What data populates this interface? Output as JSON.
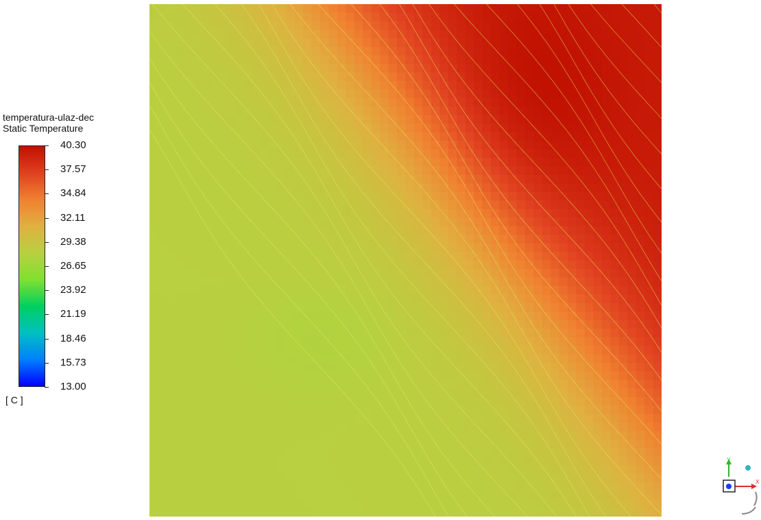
{
  "chart_data": {
    "type": "heatmap",
    "title": "temperatura-ulaz-dec",
    "subtitle": "Static Temperature",
    "unit": "[ C ]",
    "range": [
      13.0,
      40.3
    ],
    "tick_labels": [
      "40.30",
      "37.57",
      "34.84",
      "32.11",
      "29.38",
      "26.65",
      "23.92",
      "21.19",
      "18.46",
      "15.73",
      "13.00"
    ],
    "ticks": [
      40.3,
      37.57,
      34.84,
      32.11,
      29.38,
      26.65,
      23.92,
      21.19,
      18.46,
      15.73,
      13.0
    ],
    "colormap": [
      "#0000ff",
      "#0080ff",
      "#00c0c0",
      "#00d060",
      "#80e030",
      "#b8d040",
      "#e0b040",
      "#f08030",
      "#e04020",
      "#c01000"
    ],
    "contour_color": "#e6ef5a",
    "field_description_levels": {
      "min_shown": 27.5,
      "max_shown": 40.3
    }
  },
  "axis_triad": {
    "x_label": "X",
    "y_label": "Y"
  }
}
